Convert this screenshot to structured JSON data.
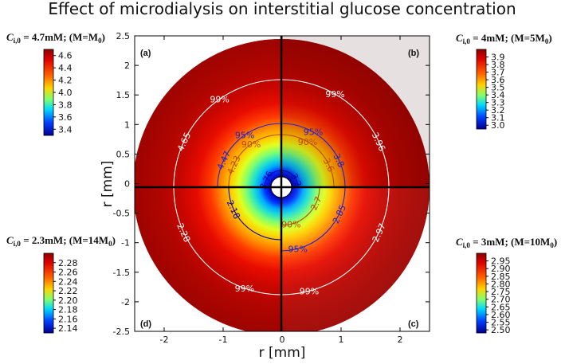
{
  "chart_data": {
    "type": "heatmap",
    "title": "Effect of microdialysis on interstitial glucose concentration",
    "xlabel": "r [mm]",
    "ylabel": "r [mm]",
    "xlim": [
      -2.5,
      2.5
    ],
    "ylim": [
      -2.5,
      2.5
    ],
    "xticks": [
      -2,
      -1,
      0,
      1,
      2
    ],
    "yticks": [
      -2.5,
      -2,
      -1.5,
      -1,
      -0.5,
      0,
      0.5,
      1,
      1.5,
      2,
      2.5
    ],
    "grid": false,
    "panels": [
      {
        "id": "(a)",
        "quadrant": "top-left",
        "condition": "C_i,0 = 4.7mM; (M=M_0)",
        "colorbar_ticks": [
          "4.6",
          "4.4",
          "4.2",
          "4.0",
          "3.8",
          "3.6",
          "3.4"
        ],
        "colorbar_range": [
          3.3,
          4.7
        ],
        "contours": [
          {
            "value": 4.65,
            "label": "4.65",
            "percent": "99%"
          },
          {
            "value": 4.47,
            "label": "4.47",
            "percent": "95%"
          },
          {
            "value": 4.23,
            "label": "4.23",
            "percent": "90%"
          },
          {
            "value": 3.76,
            "label": "3.76"
          }
        ]
      },
      {
        "id": "(b)",
        "quadrant": "top-right",
        "condition": "C_i,0 = 4mM; (M=5M_0)",
        "colorbar_ticks": [
          "3.9",
          "3.8",
          "3.7",
          "3.6",
          "3.5",
          "3.4",
          "3.3",
          "3.2",
          "3.1",
          "3.0"
        ],
        "colorbar_range": [
          2.95,
          4.0
        ],
        "contours": [
          {
            "value": 3.96,
            "label": "3.96",
            "percent": "99%"
          },
          {
            "value": 3.8,
            "label": "3.8",
            "percent": "95%"
          },
          {
            "value": 3.6,
            "label": "3.6",
            "percent": "90%"
          },
          {
            "value": 3.2,
            "label": "3.2"
          }
        ]
      },
      {
        "id": "(c)",
        "quadrant": "bottom-right",
        "condition": "C_i,0 = 3mM; (M=10M_0)",
        "colorbar_ticks": [
          "2.95",
          "2.90",
          "2.85",
          "2.80",
          "2.75",
          "2.70",
          "2.65",
          "2.60",
          "2.55",
          "2.50"
        ],
        "colorbar_range": [
          2.48,
          3.0
        ],
        "contours": [
          {
            "value": 2.97,
            "label": "2.97",
            "percent": "99%"
          },
          {
            "value": 2.85,
            "label": "2.85",
            "percent": "95%"
          },
          {
            "value": 2.7,
            "label": "2.7",
            "percent": "90%"
          }
        ]
      },
      {
        "id": "(d)",
        "quadrant": "bottom-left",
        "condition": "C_i,0 = 2.3mM; (M=14M_0)",
        "colorbar_ticks": [
          "2.28",
          "2.26",
          "2.24",
          "2.22",
          "2.20",
          "2.18",
          "2.16",
          "2.14"
        ],
        "colorbar_range": [
          2.13,
          2.3
        ],
        "contours": [
          {
            "value": 2.28,
            "label": "2.28",
            "percent": "99%"
          },
          {
            "value": 2.18,
            "label": "2.18"
          }
        ]
      }
    ]
  }
}
